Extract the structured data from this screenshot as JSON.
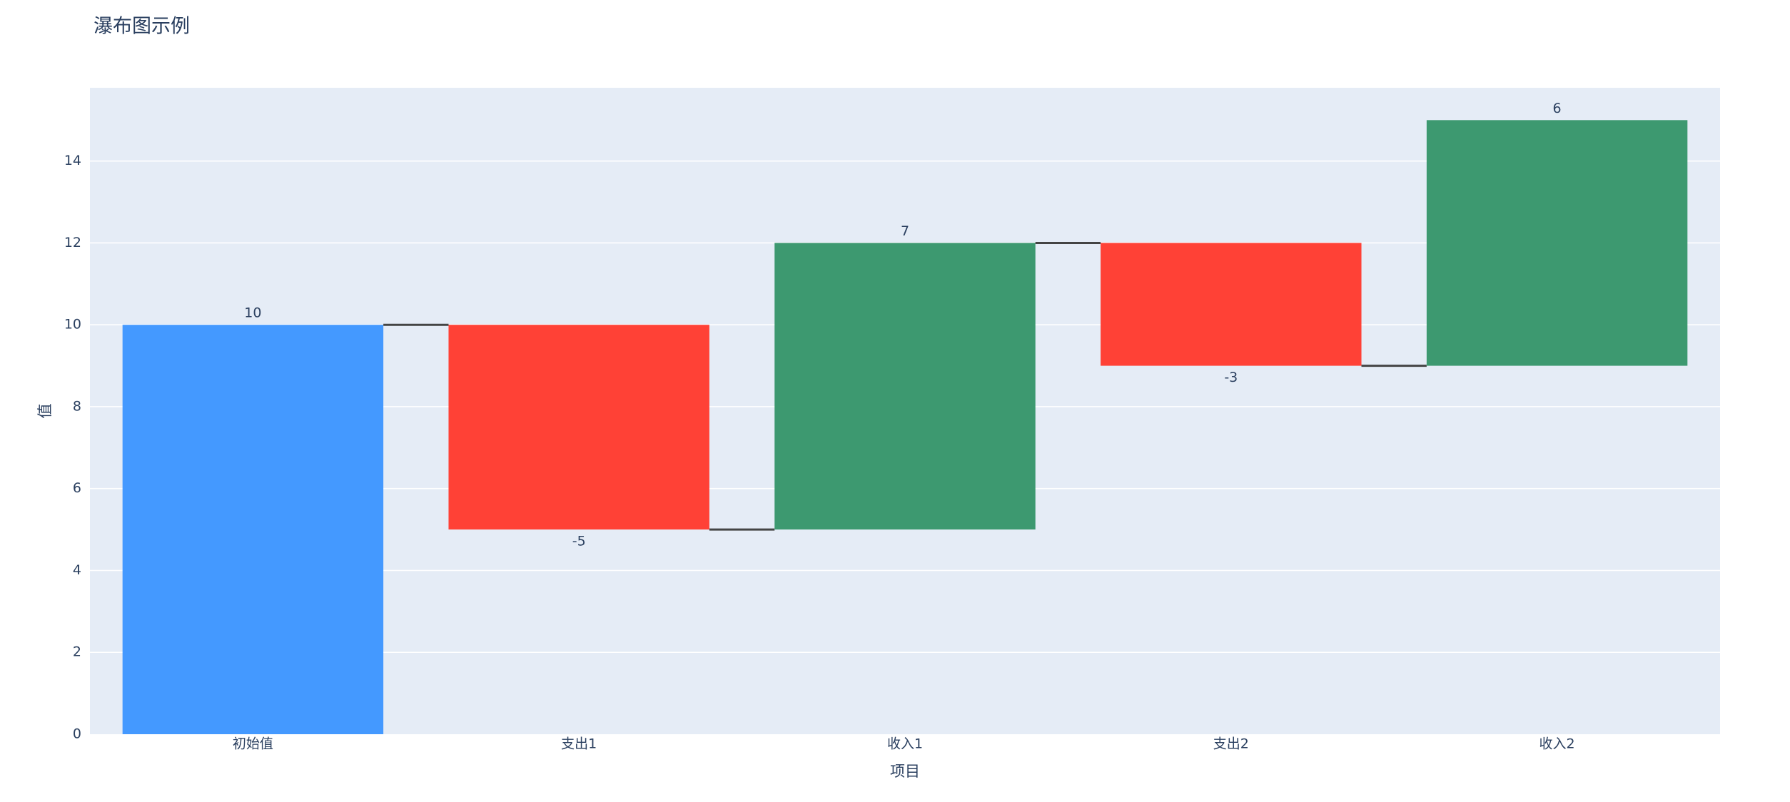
{
  "chart_data": {
    "type": "waterfall",
    "title": "瀑布图示例",
    "x_label": "项目",
    "y_label": "值",
    "categories": [
      "初始值",
      "支出1",
      "收入1",
      "支出2",
      "收入2"
    ],
    "values": [
      10,
      -5,
      7,
      -3,
      6
    ],
    "colors": [
      "#4499ff",
      "#ff4136",
      "#3d9970",
      "#ff4136",
      "#3d9970"
    ],
    "ylim": [
      0,
      15.79
    ],
    "yticks": [
      0,
      2,
      4,
      6,
      8,
      10,
      12,
      14
    ],
    "grid": true
  }
}
